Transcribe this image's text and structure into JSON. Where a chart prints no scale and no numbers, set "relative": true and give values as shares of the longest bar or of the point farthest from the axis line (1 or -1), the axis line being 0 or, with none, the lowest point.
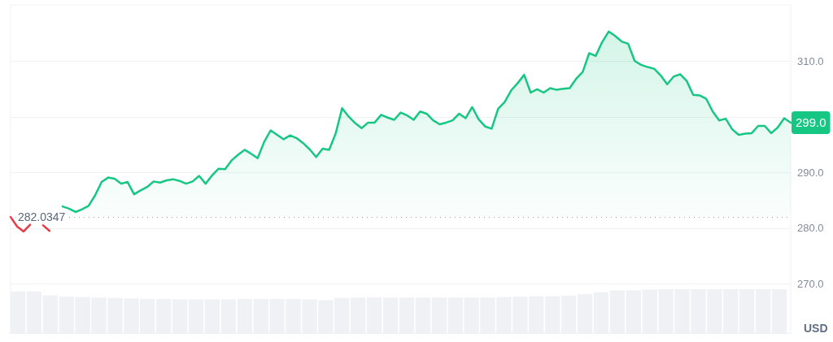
{
  "chart_data": [
    {
      "type": "area",
      "ylabel": "USD",
      "categories": [
        null,
        null,
        null,
        null,
        null,
        null,
        null,
        null,
        null,
        null,
        null,
        null,
        null,
        null,
        null,
        null,
        null,
        null,
        null,
        null,
        null,
        null,
        null,
        null,
        null,
        null,
        null,
        null,
        null,
        null,
        null,
        null,
        null,
        null,
        null,
        null,
        null,
        null,
        null,
        null,
        null,
        null,
        null,
        null,
        null,
        null,
        null,
        null,
        null,
        null,
        null,
        null,
        null,
        null,
        null,
        null,
        null,
        null,
        null,
        null,
        null,
        null,
        null,
        null,
        null,
        null,
        null,
        null,
        null,
        null,
        null,
        null,
        null,
        null,
        null,
        null,
        null,
        null,
        null,
        null,
        null,
        null,
        null,
        null,
        null,
        null,
        null,
        null,
        null,
        null,
        null,
        null,
        null,
        null,
        null,
        null,
        null,
        null,
        null,
        null,
        null,
        null,
        null,
        null,
        null,
        null,
        null,
        null,
        null,
        null,
        null,
        null,
        null,
        null,
        null,
        null,
        null,
        null,
        null,
        null,
        null
      ],
      "color": "#16c784",
      "colors": [
        "#ea3943",
        "#ea3943",
        "#ea3943",
        "#ea3943",
        "#ea3943",
        "#ea3943",
        "#ea3943",
        "#ea3943",
        "#16c784",
        "#16c784",
        "#16c784",
        "#16c784",
        "#16c784",
        "#16c784",
        "#16c784",
        "#16c784",
        "#16c784",
        "#16c784",
        "#16c784",
        "#16c784",
        "#16c784",
        "#16c784",
        "#16c784",
        "#16c784",
        "#16c784",
        "#16c784",
        "#16c784",
        "#16c784",
        "#16c784",
        "#16c784",
        "#16c784",
        "#16c784",
        "#16c784",
        "#16c784",
        "#16c784",
        "#16c784",
        "#16c784",
        "#16c784",
        "#16c784",
        "#16c784",
        "#16c784",
        "#16c784",
        "#16c784",
        "#16c784",
        "#16c784",
        "#16c784",
        "#16c784",
        "#16c784",
        "#16c784",
        "#16c784",
        "#16c784",
        "#16c784",
        "#16c784",
        "#16c784",
        "#16c784",
        "#16c784",
        "#16c784",
        "#16c784",
        "#16c784",
        "#16c784",
        "#16c784",
        "#16c784",
        "#16c784",
        "#16c784",
        "#16c784",
        "#16c784",
        "#16c784",
        "#16c784",
        "#16c784",
        "#16c784",
        "#16c784",
        "#16c784",
        "#16c784",
        "#16c784",
        "#16c784",
        "#16c784",
        "#16c784",
        "#16c784",
        "#16c784",
        "#16c784",
        "#16c784",
        "#16c784",
        "#16c784",
        "#16c784",
        "#16c784",
        "#16c784",
        "#16c784",
        "#16c784",
        "#16c784",
        "#16c784",
        "#16c784",
        "#16c784",
        "#16c784",
        "#16c784",
        "#16c784",
        "#16c784",
        "#16c784",
        "#16c784",
        "#16c784",
        "#16c784",
        "#16c784",
        "#16c784",
        "#16c784",
        "#16c784",
        "#16c784",
        "#16c784",
        "#16c784",
        "#16c784",
        "#16c784",
        "#16c784",
        "#16c784",
        "#16c784",
        "#16c784",
        "#16c784",
        "#16c784",
        "#16c784",
        "#16c784",
        "#16c784",
        "#16c784",
        "#16c784",
        "#16c784"
      ],
      "values": [
        282.0,
        280.3,
        279.4,
        280.6,
        null,
        280.5,
        279.5,
        null,
        283.9,
        283.5,
        282.9,
        283.4,
        284.0,
        285.9,
        288.3,
        289.1,
        288.9,
        288.0,
        288.3,
        286.1,
        286.8,
        287.4,
        288.4,
        288.2,
        288.6,
        288.8,
        288.5,
        288.0,
        288.4,
        289.4,
        288.0,
        289.5,
        290.7,
        290.6,
        292.2,
        293.2,
        294.1,
        293.4,
        292.6,
        295.5,
        297.6,
        296.8,
        296.0,
        296.7,
        296.2,
        295.3,
        294.2,
        292.8,
        294.3,
        294.1,
        297.0,
        301.6,
        300.1,
        298.9,
        298.0,
        299.0,
        299.0,
        300.4,
        299.9,
        299.5,
        300.8,
        300.3,
        299.5,
        301.0,
        300.6,
        299.4,
        298.7,
        299.0,
        299.4,
        300.6,
        299.8,
        301.8,
        299.6,
        298.3,
        297.9,
        301.5,
        302.7,
        304.8,
        306.1,
        307.6,
        304.4,
        305.0,
        304.4,
        305.2,
        304.9,
        305.1,
        305.2,
        306.9,
        308.1,
        311.5,
        311.0,
        313.5,
        315.4,
        314.6,
        313.6,
        313.2,
        310.1,
        309.4,
        309.0,
        308.7,
        307.5,
        305.9,
        307.3,
        307.7,
        306.5,
        304.0,
        303.9,
        303.3,
        301.0,
        299.4,
        299.7,
        297.8,
        296.8,
        297.0,
        297.1,
        298.4,
        298.4,
        297.1,
        298.1,
        299.8,
        299.0
      ],
      "value_labels": [
        null,
        null,
        null,
        null,
        null,
        null,
        null,
        null,
        null,
        null,
        null,
        null,
        null,
        null,
        null,
        null,
        null,
        null,
        null,
        null,
        null,
        null,
        null,
        null,
        null,
        null,
        null,
        null,
        null,
        null,
        null,
        null,
        null,
        null,
        null,
        null,
        null,
        null,
        null,
        null,
        null,
        null,
        null,
        null,
        null,
        null,
        null,
        null,
        null,
        null,
        null,
        null,
        null,
        null,
        null,
        null,
        null,
        null,
        null,
        null,
        null,
        null,
        null,
        null,
        null,
        null,
        null,
        null,
        null,
        null,
        null,
        null,
        null,
        null,
        null,
        null,
        null,
        null,
        null,
        null,
        null,
        null,
        null,
        null,
        null,
        null,
        null,
        null,
        null,
        null,
        null,
        null,
        null,
        null,
        null,
        null,
        null,
        null,
        null,
        null,
        null,
        null,
        null,
        null,
        null,
        null,
        null,
        null,
        null,
        null,
        null,
        null,
        null,
        null,
        null,
        null,
        null,
        null,
        null,
        null,
        "299.0"
      ],
      "ylim": [
        261.1,
        320.2
      ],
      "yticks": [
        {
          "value": 270,
          "label": "270.0"
        },
        {
          "value": 280,
          "label": "280.0"
        },
        {
          "value": 290,
          "label": "290.0"
        },
        {
          "value": 300,
          "label": null
        },
        {
          "value": 310,
          "label": "310.0"
        }
      ],
      "grid": "y",
      "tick_labels": "y",
      "ref_lines": [
        {
          "axis": "y",
          "value": 282.0347,
          "label": "282.0347",
          "line_style": "dotted",
          "color": "#9aa1ae"
        }
      ]
    },
    {
      "type": "bar",
      "relative": true,
      "tick_labels": false,
      "color": "#eff1f5",
      "categories": [
        null,
        null,
        null,
        null,
        null,
        null,
        null,
        null,
        null,
        null,
        null,
        null,
        null,
        null,
        null,
        null,
        null,
        null,
        null,
        null,
        null,
        null,
        null,
        null,
        null,
        null,
        null,
        null,
        null,
        null,
        null,
        null,
        null,
        null,
        null,
        null,
        null,
        null,
        null,
        null,
        null,
        null,
        null,
        null,
        null,
        null,
        null,
        null
      ],
      "values": [
        0.95,
        0.95,
        0.86,
        0.83,
        0.82,
        0.81,
        0.8,
        0.79,
        0.78,
        0.78,
        0.77,
        0.77,
        0.77,
        0.77,
        0.78,
        0.78,
        0.78,
        0.78,
        0.77,
        0.75,
        0.8,
        0.81,
        0.81,
        0.81,
        0.81,
        0.81,
        0.81,
        0.81,
        0.81,
        0.81,
        0.82,
        0.83,
        0.84,
        0.84,
        0.85,
        0.89,
        0.93,
        0.97,
        0.97,
        0.99,
        1.0,
        1.0,
        1.0,
        1.0,
        1.0,
        1.0,
        1.0,
        1.0
      ]
    }
  ]
}
